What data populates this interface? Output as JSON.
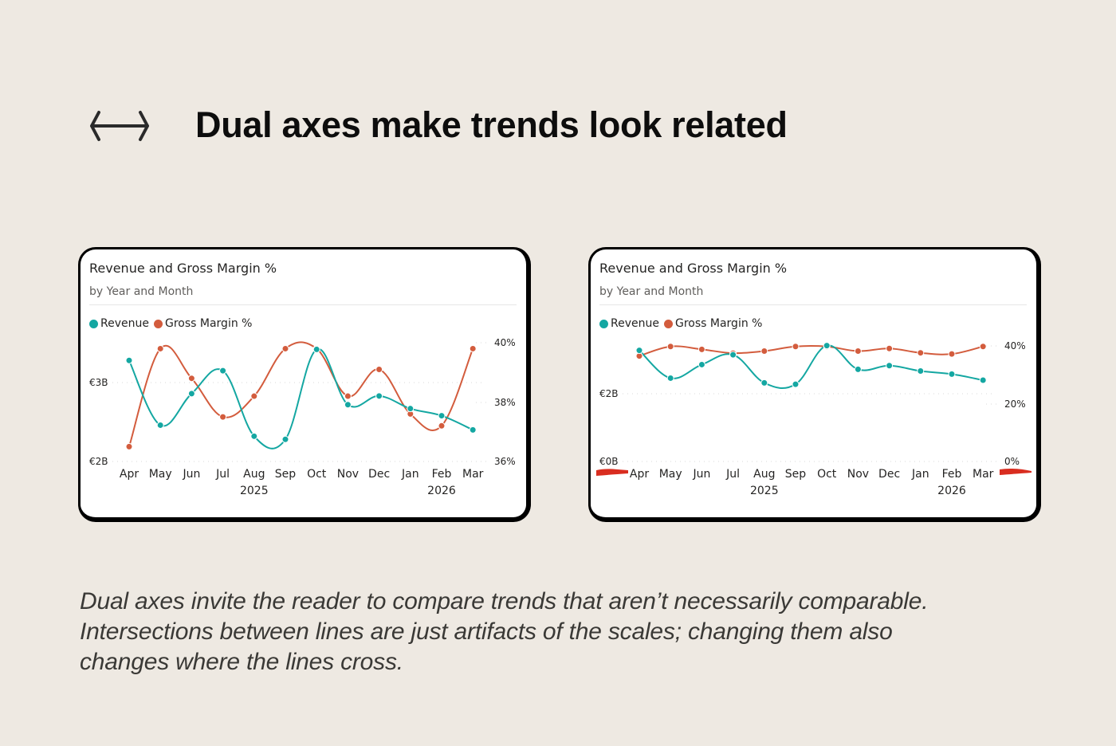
{
  "header": {
    "icon": "left-right-arrow-icon",
    "title": "Dual axes make trends look related"
  },
  "colors": {
    "background": "#EEE9E2",
    "revenue": "#14A7A2",
    "margin": "#D35C3D",
    "highlight": "#D92D20",
    "gridline": "#D9D9D9"
  },
  "cards": [
    {
      "title": "Revenue and Gross Margin %",
      "subtitle": "by Year and Month",
      "legend": [
        "Revenue",
        "Gross Margin %"
      ],
      "left_ticks": [
        "€3B",
        "€2B"
      ],
      "right_ticks": [
        "40%",
        "38%",
        "36%"
      ],
      "months": [
        "Apr",
        "May",
        "Jun",
        "Jul",
        "Aug",
        "Sep",
        "Oct",
        "Nov",
        "Dec",
        "Jan",
        "Feb",
        "Mar"
      ],
      "years": [
        "2025",
        "2026"
      ]
    },
    {
      "title": "Revenue and Gross Margin %",
      "subtitle": "by Year and Month",
      "legend": [
        "Revenue",
        "Gross Margin %"
      ],
      "left_ticks": [
        "€2B",
        "€0B"
      ],
      "right_ticks": [
        "40%",
        "20%",
        "0%"
      ],
      "months": [
        "Apr",
        "May",
        "Jun",
        "Jul",
        "Aug",
        "Sep",
        "Oct",
        "Nov",
        "Dec",
        "Jan",
        "Feb",
        "Mar"
      ],
      "years": [
        "2025",
        "2026"
      ]
    }
  ],
  "caption": {
    "lines": [
      "Dual axes invite the reader to compare trends that aren’t necessarily comparable.",
      "Intersections between lines are just artifacts of the scales; changing them also",
      "changes where the lines cross."
    ]
  },
  "chart_data": [
    {
      "type": "line",
      "title": "Revenue and Gross Margin %",
      "subtitle": "by Year and Month",
      "categories": [
        "Apr 2025",
        "May 2025",
        "Jun 2025",
        "Jul 2025",
        "Aug 2025",
        "Sep 2025",
        "Oct 2025",
        "Nov 2025",
        "Dec 2025",
        "Jan 2026",
        "Feb 2026",
        "Mar 2026"
      ],
      "series": [
        {
          "name": "Revenue",
          "axis": "left",
          "unit": "€B",
          "values": [
            3.28,
            2.46,
            2.86,
            3.15,
            2.32,
            2.28,
            3.42,
            2.72,
            2.83,
            2.67,
            2.58,
            2.4
          ]
        },
        {
          "name": "Gross Margin %",
          "axis": "right",
          "unit": "%",
          "values": [
            36.5,
            39.8,
            38.8,
            37.5,
            38.2,
            39.8,
            39.8,
            38.2,
            39.1,
            37.6,
            37.2,
            39.8
          ]
        }
      ],
      "y_left": {
        "ticks": [
          "€2B",
          "€3B"
        ],
        "range": [
          2,
          3.5
        ]
      },
      "y_right": {
        "ticks": [
          "36%",
          "38%",
          "40%"
        ],
        "range": [
          36,
          40
        ]
      },
      "legend_position": "top-left",
      "grid": "dotted horizontal"
    },
    {
      "type": "line",
      "title": "Revenue and Gross Margin %",
      "subtitle": "by Year and Month",
      "categories": [
        "Apr 2025",
        "May 2025",
        "Jun 2025",
        "Jul 2025",
        "Aug 2025",
        "Sep 2025",
        "Oct 2025",
        "Nov 2025",
        "Dec 2025",
        "Jan 2026",
        "Feb 2026",
        "Mar 2026"
      ],
      "series": [
        {
          "name": "Revenue",
          "axis": "left",
          "unit": "€B",
          "values": [
            3.28,
            2.46,
            2.86,
            3.15,
            2.32,
            2.28,
            3.42,
            2.72,
            2.83,
            2.67,
            2.58,
            2.4
          ]
        },
        {
          "name": "Gross Margin %",
          "axis": "right",
          "unit": "%",
          "values": [
            36.5,
            39.8,
            38.8,
            37.5,
            38.2,
            39.8,
            39.8,
            38.2,
            39.1,
            37.6,
            37.2,
            39.8
          ]
        }
      ],
      "y_left": {
        "ticks": [
          "€0B",
          "€2B"
        ],
        "range": [
          0,
          3.4
        ]
      },
      "y_right": {
        "ticks": [
          "0%",
          "20%",
          "40%"
        ],
        "range": [
          0,
          40
        ]
      },
      "legend_position": "top-left",
      "grid": "dotted horizontal",
      "annotations": [
        "red brush marks highlighting zero baseline on both axes"
      ]
    }
  ]
}
